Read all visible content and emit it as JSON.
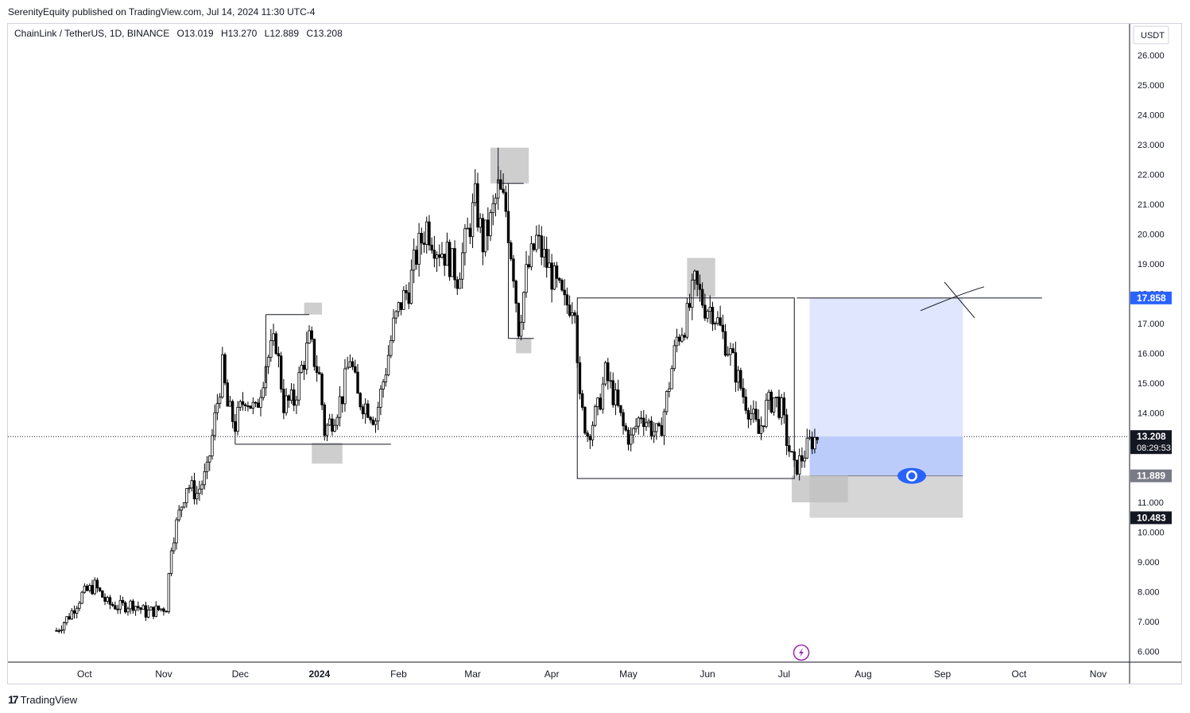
{
  "header": {
    "publish_text": "SerenityEquity published on TradingView.com, Jul 14, 2024 11:30 UTC-4"
  },
  "legend": {
    "symbol": "ChainLink / TetherUS, 1D, BINANCE",
    "open": "O13.019",
    "high": "H13.270",
    "low": "L12.889",
    "close": "C13.208"
  },
  "footer": {
    "brand": "TradingView"
  },
  "colors": {
    "candle": "#000000",
    "target_zone": "#bcccfa",
    "stop_zone": "#bdbdbd",
    "target_tag": "#2962ff",
    "eye_icon": "#2962ff",
    "lightning_icon": "#9c27b0"
  },
  "chart_data": {
    "type": "candlestick",
    "symbol": "ChainLink / TetherUS",
    "interval": "1D",
    "exchange": "BINANCE",
    "currency_label": "USDT",
    "ylim": [
      5.8,
      26.8
    ],
    "y_ticks": [
      "26.000",
      "25.000",
      "24.000",
      "23.000",
      "22.000",
      "21.000",
      "20.000",
      "19.000",
      "18.000",
      "17.000",
      "16.000",
      "15.000",
      "14.000",
      "13.000",
      "12.000",
      "11.000",
      "10.000",
      "9.000",
      "8.000",
      "7.000",
      "6.000"
    ],
    "x_ticks": [
      {
        "label": "Oct",
        "date": "2023-10-01"
      },
      {
        "label": "Nov",
        "date": "2023-11-01"
      },
      {
        "label": "Dec",
        "date": "2023-12-01"
      },
      {
        "label": "2024",
        "date": "2024-01-01",
        "bold": true
      },
      {
        "label": "Feb",
        "date": "2024-02-01"
      },
      {
        "label": "Mar",
        "date": "2024-03-01"
      },
      {
        "label": "Apr",
        "date": "2024-04-01"
      },
      {
        "label": "May",
        "date": "2024-05-01"
      },
      {
        "label": "Jun",
        "date": "2024-06-01"
      },
      {
        "label": "Jul",
        "date": "2024-07-01"
      },
      {
        "label": "Aug",
        "date": "2024-08-01"
      },
      {
        "label": "Sep",
        "date": "2024-09-01"
      },
      {
        "label": "Oct",
        "date": "2024-10-01"
      },
      {
        "label": "Nov",
        "date": "2024-11-01"
      }
    ],
    "close_path": [
      [
        "2023-09-20",
        6.7
      ],
      [
        "2023-09-25",
        7.2
      ],
      [
        "2023-09-30",
        7.9
      ],
      [
        "2023-10-05",
        8.2
      ],
      [
        "2023-10-10",
        7.6
      ],
      [
        "2023-10-15",
        7.5
      ],
      [
        "2023-10-20",
        7.6
      ],
      [
        "2023-10-25",
        7.3
      ],
      [
        "2023-10-30",
        7.4
      ],
      [
        "2023-11-02",
        7.5
      ],
      [
        "2023-11-04",
        9.6
      ],
      [
        "2023-11-07",
        10.6
      ],
      [
        "2023-11-10",
        11.6
      ],
      [
        "2023-11-14",
        11.3
      ],
      [
        "2023-11-18",
        12.0
      ],
      [
        "2023-11-21",
        13.8
      ],
      [
        "2023-11-24",
        15.5
      ],
      [
        "2023-11-26",
        14.2
      ],
      [
        "2023-11-29",
        13.6
      ],
      [
        "2023-12-03",
        14.6
      ],
      [
        "2023-12-07",
        14.0
      ],
      [
        "2023-12-11",
        15.7
      ],
      [
        "2023-12-15",
        16.4
      ],
      [
        "2023-12-18",
        14.3
      ],
      [
        "2023-12-22",
        14.4
      ],
      [
        "2023-12-25",
        15.5
      ],
      [
        "2023-12-28",
        16.4
      ],
      [
        "2024-01-01",
        15.2
      ],
      [
        "2024-01-03",
        13.4
      ],
      [
        "2024-01-06",
        13.8
      ],
      [
        "2024-01-10",
        14.6
      ],
      [
        "2024-01-13",
        15.9
      ],
      [
        "2024-01-16",
        14.5
      ],
      [
        "2024-01-20",
        14.2
      ],
      [
        "2024-01-23",
        13.8
      ],
      [
        "2024-01-27",
        15.5
      ],
      [
        "2024-01-30",
        16.9
      ],
      [
        "2024-02-02",
        17.7
      ],
      [
        "2024-02-05",
        18.2
      ],
      [
        "2024-02-08",
        19.3
      ],
      [
        "2024-02-12",
        20.3
      ],
      [
        "2024-02-16",
        19.6
      ],
      [
        "2024-02-20",
        19.3
      ],
      [
        "2024-02-24",
        18.6
      ],
      [
        "2024-02-28",
        20.0
      ],
      [
        "2024-03-02",
        21.1
      ],
      [
        "2024-03-05",
        19.7
      ],
      [
        "2024-03-08",
        20.4
      ],
      [
        "2024-03-11",
        21.5
      ],
      [
        "2024-03-14",
        20.8
      ],
      [
        "2024-03-17",
        18.8
      ],
      [
        "2024-03-19",
        16.9
      ],
      [
        "2024-03-22",
        18.6
      ],
      [
        "2024-03-26",
        19.8
      ],
      [
        "2024-03-30",
        19.0
      ],
      [
        "2024-04-03",
        18.2
      ],
      [
        "2024-04-06",
        17.6
      ],
      [
        "2024-04-10",
        17.8
      ],
      [
        "2024-04-12",
        14.3
      ],
      [
        "2024-04-15",
        13.3
      ],
      [
        "2024-04-19",
        14.1
      ],
      [
        "2024-04-22",
        15.3
      ],
      [
        "2024-04-26",
        14.4
      ],
      [
        "2024-04-29",
        13.5
      ],
      [
        "2024-05-02",
        13.1
      ],
      [
        "2024-05-06",
        14.0
      ],
      [
        "2024-05-10",
        13.5
      ],
      [
        "2024-05-13",
        13.2
      ],
      [
        "2024-05-16",
        14.5
      ],
      [
        "2024-05-20",
        16.5
      ],
      [
        "2024-05-24",
        17.2
      ],
      [
        "2024-05-27",
        18.3
      ],
      [
        "2024-05-31",
        17.6
      ],
      [
        "2024-06-03",
        17.5
      ],
      [
        "2024-06-06",
        16.8
      ],
      [
        "2024-06-09",
        16.2
      ],
      [
        "2024-06-12",
        15.4
      ],
      [
        "2024-06-15",
        14.6
      ],
      [
        "2024-06-18",
        14.0
      ],
      [
        "2024-06-21",
        13.3
      ],
      [
        "2024-06-24",
        14.2
      ],
      [
        "2024-06-27",
        14.5
      ],
      [
        "2024-06-30",
        14.1
      ],
      [
        "2024-07-02",
        13.1
      ],
      [
        "2024-07-05",
        12.1
      ],
      [
        "2024-07-08",
        12.5
      ],
      [
        "2024-07-11",
        13.0
      ],
      [
        "2024-07-14",
        13.21
      ]
    ],
    "price_tags": [
      {
        "price": 17.858,
        "label": "17.858",
        "color": "#2962ff"
      },
      {
        "price": 13.208,
        "label": "13.208",
        "sub": "08:29:53",
        "color": "#131722"
      },
      {
        "price": 11.889,
        "label": "11.889",
        "color": "#787b86"
      },
      {
        "price": 10.483,
        "label": "10.483",
        "color": "#131722"
      }
    ],
    "annotations": {
      "range_boxes": [
        {
          "from": "2024-04-11",
          "to": "2024-07-05",
          "top": 17.858,
          "bottom": 11.8
        }
      ],
      "levels": [
        {
          "from": "2023-12-11",
          "to": "2023-12-28",
          "price": 17.3
        },
        {
          "from": "2023-11-29",
          "to": "2024-01-29",
          "price": 12.95
        },
        {
          "from": "2024-03-11",
          "to": "2024-03-21",
          "price": 21.7
        },
        {
          "from": "2024-03-15",
          "to": "2024-03-25",
          "price": 16.5
        },
        {
          "from": "2024-07-06",
          "to": "2024-10-10",
          "price": 17.858
        }
      ],
      "gray_markers": [
        {
          "from": "2023-12-26",
          "to": "2024-01-02",
          "top": 17.7,
          "bottom": 17.3
        },
        {
          "from": "2023-12-29",
          "to": "2024-01-10",
          "top": 13.0,
          "bottom": 12.3
        },
        {
          "from": "2024-03-08",
          "to": "2024-03-23",
          "top": 22.9,
          "bottom": 21.7
        },
        {
          "from": "2024-03-18",
          "to": "2024-03-24",
          "top": 16.5,
          "bottom": 16.0
        },
        {
          "from": "2024-05-24",
          "to": "2024-06-04",
          "top": 19.2,
          "bottom": 17.9
        },
        {
          "from": "2024-07-04",
          "to": "2024-07-26",
          "top": 11.9,
          "bottom": 11.0
        }
      ],
      "position": {
        "from": "2024-07-11",
        "to": "2024-09-09",
        "entry": 11.889,
        "target": 17.858,
        "stop": 10.483
      }
    }
  }
}
